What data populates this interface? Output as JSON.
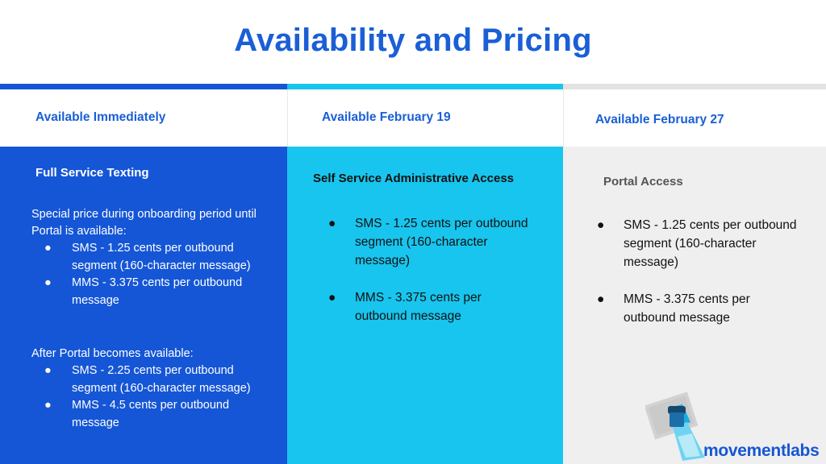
{
  "title": "Availability and Pricing",
  "colors": {
    "blue": "#1556d6",
    "cyan": "#18c5ee",
    "gray": "#efefef"
  },
  "columns": [
    {
      "header": "Available Immediately",
      "subtitle": "Full Service Texting",
      "intro1": "Special price during onboarding period until Portal is available:",
      "list1": [
        "SMS - 1.25 cents per outbound segment (160-character message)",
        "MMS - 3.375 cents per outbound message"
      ],
      "intro2": "After Portal becomes available:",
      "list2": [
        "SMS - 2.25 cents per outbound segment (160-character message)",
        "MMS - 4.5 cents per outbound message"
      ]
    },
    {
      "header": "Available February 19",
      "subtitle": "Self Service Administrative Access",
      "list": [
        "SMS - 1.25 cents per outbound segment (160-character message)",
        "MMS - 3.375 cents per outbound message"
      ]
    },
    {
      "header": "Available February 27",
      "subtitle": "Portal Access",
      "list": [
        "SMS - 1.25 cents per outbound segment (160-character message)",
        "MMS - 3.375 cents per outbound message"
      ]
    }
  ],
  "bullet": "●",
  "logo": {
    "text": "movementlabs",
    "icon": "raised-fist-flag-icon"
  }
}
